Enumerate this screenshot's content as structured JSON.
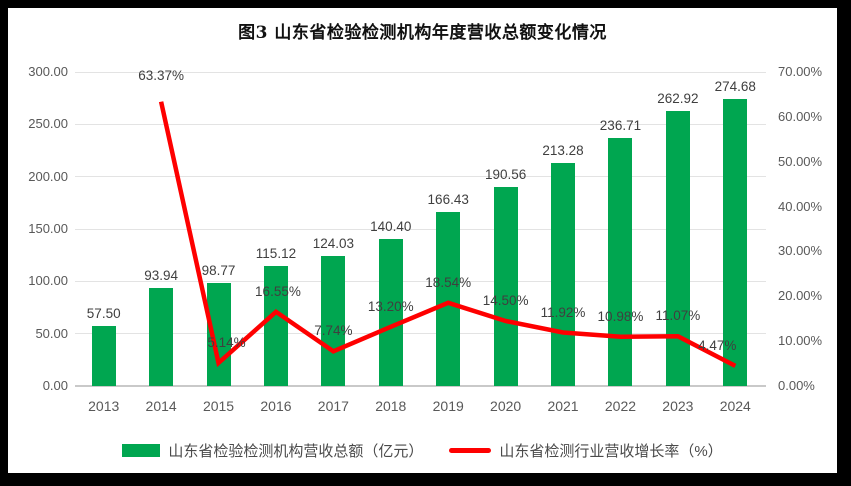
{
  "chart_data": {
    "type": "combo",
    "title": "图3  山东省检验检测机构年度营收总额变化情况",
    "categories": [
      "2013",
      "2014",
      "2015",
      "2016",
      "2017",
      "2018",
      "2019",
      "2020",
      "2021",
      "2022",
      "2023",
      "2024"
    ],
    "series": [
      {
        "name": "山东省检验检测机构营收总额（亿元）",
        "type": "bar",
        "color": "#00a650",
        "axis": "left",
        "values": [
          57.5,
          93.94,
          98.77,
          115.12,
          124.03,
          140.4,
          166.43,
          190.56,
          213.28,
          236.71,
          262.92,
          274.68
        ],
        "labels": [
          "57.50",
          "93.94",
          "98.77",
          "115.12",
          "124.03",
          "140.40",
          "166.43",
          "190.56",
          "213.28",
          "236.71",
          "262.92",
          "274.68"
        ]
      },
      {
        "name": "山东省检测行业营收增长率（%）",
        "type": "line",
        "color": "#fe0000",
        "axis": "right",
        "values": [
          null,
          63.37,
          5.14,
          16.55,
          7.74,
          13.2,
          18.54,
          14.5,
          11.92,
          10.98,
          11.07,
          4.47
        ],
        "labels": [
          null,
          "63.37%",
          "5.14%",
          "16.55%",
          "7.74%",
          "13.20%",
          "18.54%",
          "14.50%",
          "11.92%",
          "10.98%",
          "11.07%",
          "4.47%"
        ],
        "label_dx": [
          0,
          0,
          8,
          2,
          0,
          0,
          0,
          0,
          0,
          0,
          0,
          -18
        ],
        "label_dy": [
          0,
          -6,
          0,
          0,
          0,
          0,
          0,
          0,
          0,
          0,
          0,
          0
        ]
      }
    ],
    "y_left": {
      "min": 0,
      "max": 300,
      "step": 50,
      "tick_labels": [
        "0.00",
        "50.00",
        "100.00",
        "150.00",
        "200.00",
        "250.00",
        "300.00"
      ]
    },
    "y_right": {
      "min": 0,
      "max": 70,
      "step": 10,
      "tick_labels": [
        "0.00%",
        "10.00%",
        "20.00%",
        "30.00%",
        "40.00%",
        "50.00%",
        "60.00%",
        "70.00%"
      ]
    },
    "grid": true,
    "legend_position": "bottom",
    "colors": {
      "grid": "#e3e3e3",
      "axis_line": "#c9c9c9",
      "tick_text": "#595959",
      "label_text": "#3f3f3f"
    }
  }
}
